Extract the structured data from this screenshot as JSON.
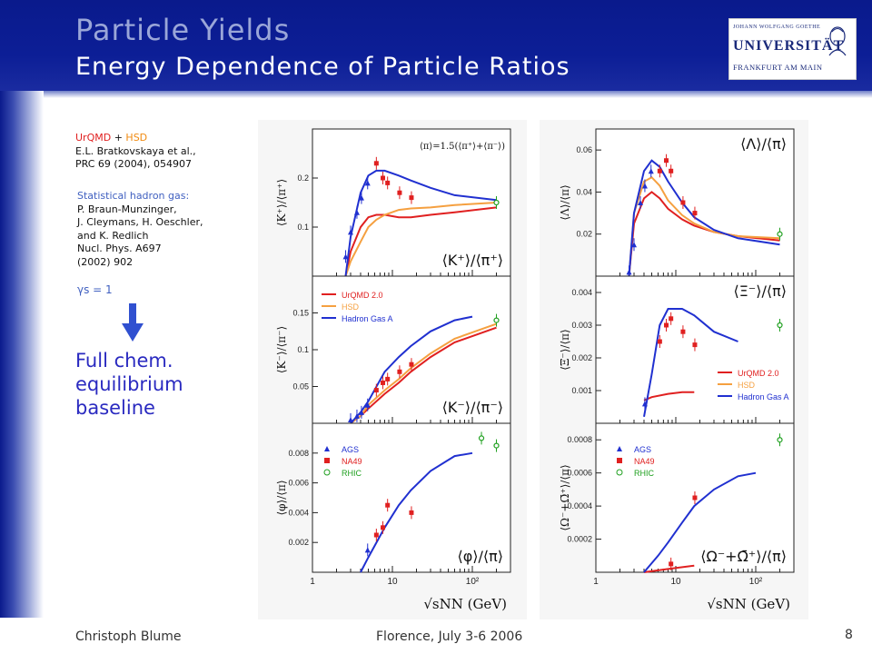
{
  "header": {
    "title": "Particle Yields",
    "subtitle": "Energy Dependence of Particle Ratios"
  },
  "logo": {
    "top": "JOHANN WOLFGANG GOETHE",
    "main": "UNIVERSITÄT",
    "bottom": "FRANKFURT AM MAIN"
  },
  "references": {
    "model1": "UrQMD",
    "plus": " + ",
    "model2": "HSD",
    "line2": "E.L. Bratkovskaya et al.,",
    "line3": "PRC 69 (2004), 054907",
    "shg_title": "Statistical hadron gas:",
    "shg_lines": [
      "P. Braun-Munzinger,",
      "J. Cleymans, H. Oeschler,",
      "and K. Redlich",
      "Nucl. Phys. A697",
      "(2002) 902"
    ],
    "gamma": "γs = 1"
  },
  "baseline": [
    "Full chem.",
    "equilibrium",
    "baseline"
  ],
  "footer": {
    "author": "Christoph Blume",
    "event": "Florence, July 3-6 2006",
    "page": "8"
  },
  "colors": {
    "urqmd": "#e02020",
    "hsd": "#f5a040",
    "hadron_gas": "#2030d0",
    "ags": "#2030d0",
    "na49": "#e02020",
    "rhic": "#20a020"
  },
  "chart_data": [
    {
      "type": "line",
      "title": "⟨K⁺⟩/⟨π⁺⟩",
      "ylabel": "⟨K⁺⟩/⟨π⁺⟩",
      "ylim": [
        0,
        0.3
      ],
      "yticks": [
        "0.1",
        "0.2"
      ],
      "xscale": "log",
      "xlim": [
        1,
        300
      ],
      "note": "⟨π⟩=1.5(⟨π⁺⟩+⟨π⁻⟩)",
      "series": [
        {
          "name": "UrQMD 2.0",
          "x": [
            2.6,
            3,
            4,
            5,
            6.3,
            8,
            12,
            17,
            30,
            60,
            200
          ],
          "y": [
            0.0,
            0.05,
            0.1,
            0.12,
            0.125,
            0.125,
            0.12,
            0.12,
            0.125,
            0.13,
            0.14
          ]
        },
        {
          "name": "HSD",
          "x": [
            2.6,
            3,
            4,
            5,
            6.3,
            8,
            12,
            17,
            30,
            60,
            200
          ],
          "y": [
            0.0,
            0.03,
            0.07,
            0.1,
            0.115,
            0.125,
            0.135,
            0.138,
            0.14,
            0.145,
            0.15
          ]
        },
        {
          "name": "Hadron Gas A",
          "x": [
            2.6,
            3,
            4,
            5,
            6.3,
            8,
            12,
            17,
            30,
            60,
            200
          ],
          "y": [
            0.0,
            0.08,
            0.17,
            0.205,
            0.215,
            0.215,
            0.205,
            0.195,
            0.18,
            0.165,
            0.155
          ]
        },
        {
          "name": "AGS",
          "x": [
            2.6,
            3.0,
            3.6,
            4.1,
            4.9
          ],
          "y": [
            0.04,
            0.09,
            0.13,
            0.16,
            0.19
          ]
        },
        {
          "name": "NA49",
          "x": [
            6.3,
            7.6,
            8.7,
            12.3,
            17.3
          ],
          "y": [
            0.23,
            0.2,
            0.19,
            0.17,
            0.16
          ]
        },
        {
          "name": "RHIC",
          "x": [
            200
          ],
          "y": [
            0.15
          ]
        }
      ]
    },
    {
      "type": "line",
      "title": "⟨K⁻⟩/⟨π⁻⟩",
      "ylabel": "⟨K⁻⟩/⟨π⁻⟩",
      "ylim": [
        0,
        0.2
      ],
      "yticks": [
        "0.05",
        "0.1",
        "0.15"
      ],
      "xscale": "log",
      "xlim": [
        1,
        300
      ],
      "series": [
        {
          "name": "UrQMD 2.0",
          "x": [
            3,
            4,
            5,
            8,
            12,
            17,
            30,
            60,
            200
          ],
          "y": [
            0.0,
            0.01,
            0.02,
            0.04,
            0.055,
            0.07,
            0.09,
            0.11,
            0.13
          ]
        },
        {
          "name": "HSD",
          "x": [
            3,
            4,
            5,
            8,
            12,
            17,
            30,
            60,
            200
          ],
          "y": [
            0.0,
            0.01,
            0.025,
            0.045,
            0.06,
            0.075,
            0.095,
            0.115,
            0.135
          ]
        },
        {
          "name": "Hadron Gas A",
          "x": [
            3,
            4,
            5,
            8,
            12,
            17,
            30,
            60,
            100
          ],
          "y": [
            0.0,
            0.015,
            0.03,
            0.07,
            0.09,
            0.105,
            0.125,
            0.14,
            0.145
          ]
        },
        {
          "name": "AGS",
          "x": [
            3.0,
            3.6,
            4.1,
            4.9
          ],
          "y": [
            0.005,
            0.01,
            0.015,
            0.025
          ]
        },
        {
          "name": "NA49",
          "x": [
            6.3,
            7.6,
            8.7,
            12.3,
            17.3
          ],
          "y": [
            0.045,
            0.055,
            0.06,
            0.07,
            0.08
          ]
        },
        {
          "name": "RHIC",
          "x": [
            200
          ],
          "y": [
            0.14
          ]
        }
      ]
    },
    {
      "type": "line",
      "title": "⟨φ⟩/⟨π⟩",
      "ylabel": "⟨φ⟩/⟨π⟩",
      "ylim": [
        0,
        0.01
      ],
      "yticks": [
        "0.002",
        "0.004",
        "0.006",
        "0.008"
      ],
      "xscale": "log",
      "xlim": [
        1,
        300
      ],
      "xlabel": "√sNN (GeV)",
      "xticks": [
        "1",
        "10",
        "10²"
      ],
      "series": [
        {
          "name": "Hadron Gas A",
          "x": [
            4,
            5,
            8,
            12,
            17,
            30,
            60,
            100
          ],
          "y": [
            0.0,
            0.001,
            0.003,
            0.0045,
            0.0055,
            0.0068,
            0.0078,
            0.008
          ]
        },
        {
          "name": "AGS",
          "x": [
            4.9
          ],
          "y": [
            0.0015
          ]
        },
        {
          "name": "NA49",
          "x": [
            6.3,
            7.6,
            8.7,
            17.3
          ],
          "y": [
            0.0025,
            0.003,
            0.0045,
            0.004
          ]
        },
        {
          "name": "RHIC",
          "x": [
            130,
            200
          ],
          "y": [
            0.009,
            0.0085
          ]
        }
      ]
    },
    {
      "type": "line",
      "title": "⟨Λ⟩/⟨π⟩",
      "ylabel": "⟨Λ⟩/⟨π⟩",
      "ylim": [
        0,
        0.07
      ],
      "yticks": [
        "0.02",
        "0.04",
        "0.06"
      ],
      "xscale": "log",
      "xlim": [
        1,
        300
      ],
      "series": [
        {
          "name": "UrQMD 2.0",
          "x": [
            2.6,
            3,
            4,
            5,
            6.3,
            8,
            12,
            17,
            30,
            60,
            200
          ],
          "y": [
            0.0,
            0.025,
            0.037,
            0.04,
            0.037,
            0.032,
            0.027,
            0.024,
            0.021,
            0.019,
            0.017
          ]
        },
        {
          "name": "HSD",
          "x": [
            2.6,
            3,
            4,
            5,
            6.3,
            8,
            12,
            17,
            30,
            60,
            200
          ],
          "y": [
            0.0,
            0.03,
            0.045,
            0.047,
            0.043,
            0.036,
            0.029,
            0.025,
            0.021,
            0.019,
            0.018
          ]
        },
        {
          "name": "Hadron Gas A",
          "x": [
            2.6,
            3,
            4,
            5,
            6.3,
            8,
            12,
            17,
            30,
            60,
            200
          ],
          "y": [
            0.0,
            0.03,
            0.05,
            0.055,
            0.052,
            0.045,
            0.035,
            0.028,
            0.022,
            0.018,
            0.015
          ]
        },
        {
          "name": "AGS",
          "x": [
            2.6,
            3.0,
            3.6,
            4.1,
            4.9
          ],
          "y": [
            0.002,
            0.015,
            0.035,
            0.043,
            0.05
          ]
        },
        {
          "name": "NA49",
          "x": [
            6.3,
            7.6,
            8.7,
            12.3,
            17.3
          ],
          "y": [
            0.05,
            0.055,
            0.05,
            0.035,
            0.03
          ]
        },
        {
          "name": "RHIC",
          "x": [
            200
          ],
          "y": [
            0.02
          ]
        }
      ]
    },
    {
      "type": "line",
      "title": "⟨Ξ⁻⟩/⟨π⟩",
      "ylabel": "⟨Ξ⁻⟩/⟨π⟩",
      "ylim": [
        0,
        0.0045
      ],
      "yticks": [
        "0.001",
        "0.002",
        "0.003",
        "0.004"
      ],
      "xscale": "log",
      "xlim": [
        1,
        300
      ],
      "series": [
        {
          "name": "UrQMD 2.0",
          "x": [
            4,
            5,
            8,
            12,
            17
          ],
          "y": [
            0.0007,
            0.0008,
            0.0009,
            0.00095,
            0.00095
          ]
        },
        {
          "name": "Hadron Gas A",
          "x": [
            4,
            5,
            6.3,
            8,
            12,
            17,
            30,
            60
          ],
          "y": [
            0.0002,
            0.0015,
            0.003,
            0.0035,
            0.0035,
            0.0033,
            0.0028,
            0.0025
          ]
        },
        {
          "name": "AGS",
          "x": [
            4.1
          ],
          "y": [
            0.0006
          ]
        },
        {
          "name": "NA49",
          "x": [
            6.3,
            7.6,
            8.7,
            12.3,
            17.3
          ],
          "y": [
            0.0025,
            0.003,
            0.0032,
            0.0028,
            0.0024
          ]
        },
        {
          "name": "RHIC",
          "x": [
            200
          ],
          "y": [
            0.003
          ]
        }
      ]
    },
    {
      "type": "line",
      "title": "⟨Ω⁻+Ω̄⁺⟩/⟨π⟩",
      "ylabel": "⟨Ω⁻+Ω̄⁺⟩/⟨π⟩",
      "ylim": [
        0,
        0.0009
      ],
      "yticks": [
        "0.0002",
        "0.0004",
        "0.0006",
        "0.0008"
      ],
      "xscale": "log",
      "xlim": [
        1,
        300
      ],
      "xlabel": "√sNN (GeV)",
      "xticks": [
        "1",
        "10",
        "10²"
      ],
      "series": [
        {
          "name": "UrQMD 2.0",
          "x": [
            4,
            8,
            17
          ],
          "y": [
            0.0,
            2e-05,
            4e-05
          ]
        },
        {
          "name": "Hadron Gas A",
          "x": [
            4,
            6,
            8,
            12,
            17,
            30,
            60,
            100
          ],
          "y": [
            0.0,
            0.0001,
            0.00018,
            0.0003,
            0.0004,
            0.0005,
            0.00058,
            0.0006
          ]
        },
        {
          "name": "NA49",
          "x": [
            8.7,
            17.3
          ],
          "y": [
            5e-05,
            0.00045
          ]
        },
        {
          "name": "RHIC",
          "x": [
            200
          ],
          "y": [
            0.0008
          ]
        }
      ]
    }
  ]
}
